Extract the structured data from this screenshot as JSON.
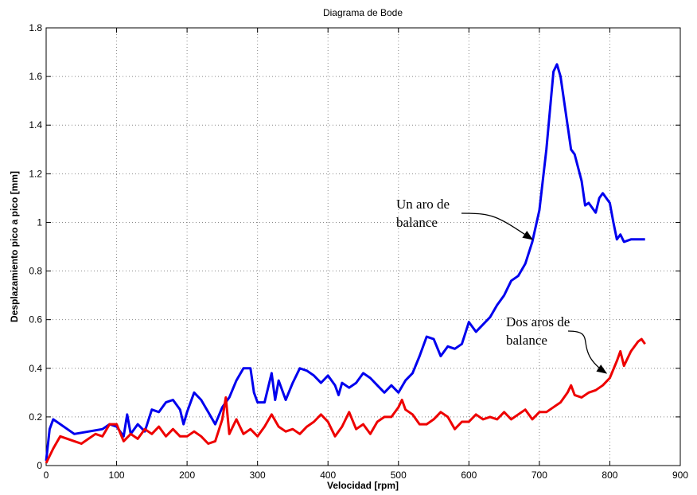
{
  "chart_data": {
    "type": "line",
    "title": "Diagrama de Bode",
    "xlabel": "Velocidad [rpm]",
    "ylabel": "Desplazamiento pico a pico [mm]",
    "xlim": [
      0,
      900
    ],
    "xticks": [
      0,
      100,
      200,
      300,
      400,
      500,
      600,
      700,
      800,
      900
    ],
    "ylim": [
      0,
      1.8
    ],
    "yticks": [
      0,
      0.2,
      0.4,
      0.6,
      0.8,
      1,
      1.2,
      1.4,
      1.6,
      1.8
    ],
    "grid": true,
    "annotations": [
      {
        "lines": [
          "Un aro de",
          "balance"
        ],
        "x": 690,
        "y": 0.93
      },
      {
        "lines": [
          "Dos aros de",
          "balance"
        ],
        "x": 795,
        "y": 0.38
      }
    ],
    "series": [
      {
        "color": "#0000ee",
        "x": [
          0,
          5,
          10,
          40,
          80,
          90,
          100,
          110,
          115,
          120,
          130,
          140,
          150,
          160,
          170,
          180,
          190,
          195,
          200,
          210,
          220,
          230,
          240,
          250,
          260,
          270,
          280,
          290,
          295,
          300,
          310,
          320,
          325,
          330,
          340,
          350,
          360,
          370,
          380,
          390,
          400,
          410,
          415,
          420,
          430,
          440,
          450,
          460,
          470,
          480,
          490,
          500,
          510,
          520,
          530,
          540,
          550,
          560,
          570,
          580,
          590,
          600,
          610,
          620,
          630,
          640,
          650,
          660,
          670,
          680,
          690,
          700,
          710,
          720,
          725,
          730,
          740,
          745,
          750,
          760,
          765,
          770,
          780,
          785,
          790,
          800,
          805,
          810,
          815,
          820,
          830,
          850
        ],
        "values": [
          0.02,
          0.15,
          0.19,
          0.13,
          0.15,
          0.17,
          0.16,
          0.12,
          0.21,
          0.13,
          0.17,
          0.14,
          0.23,
          0.22,
          0.26,
          0.27,
          0.23,
          0.17,
          0.22,
          0.3,
          0.27,
          0.22,
          0.17,
          0.24,
          0.28,
          0.35,
          0.4,
          0.4,
          0.3,
          0.26,
          0.26,
          0.38,
          0.27,
          0.35,
          0.27,
          0.34,
          0.4,
          0.39,
          0.37,
          0.34,
          0.37,
          0.33,
          0.29,
          0.34,
          0.32,
          0.34,
          0.38,
          0.36,
          0.33,
          0.3,
          0.33,
          0.3,
          0.35,
          0.38,
          0.45,
          0.53,
          0.52,
          0.45,
          0.49,
          0.48,
          0.5,
          0.59,
          0.55,
          0.58,
          0.61,
          0.66,
          0.7,
          0.76,
          0.78,
          0.83,
          0.92,
          1.05,
          1.3,
          1.62,
          1.65,
          1.6,
          1.4,
          1.3,
          1.28,
          1.17,
          1.07,
          1.08,
          1.04,
          1.1,
          1.12,
          1.08,
          1.0,
          0.93,
          0.95,
          0.92,
          0.93,
          0.93
        ]
      },
      {
        "color": "#ee0000",
        "x": [
          0,
          10,
          20,
          40,
          50,
          70,
          80,
          90,
          100,
          110,
          120,
          130,
          140,
          150,
          160,
          170,
          180,
          190,
          200,
          210,
          220,
          230,
          240,
          250,
          255,
          260,
          270,
          280,
          290,
          300,
          310,
          320,
          330,
          340,
          350,
          360,
          370,
          380,
          390,
          400,
          410,
          420,
          430,
          440,
          450,
          460,
          470,
          480,
          490,
          500,
          505,
          510,
          520,
          530,
          540,
          550,
          560,
          570,
          580,
          590,
          600,
          610,
          620,
          630,
          640,
          650,
          660,
          670,
          680,
          690,
          700,
          710,
          720,
          730,
          740,
          745,
          750,
          760,
          770,
          780,
          790,
          800,
          810,
          815,
          820,
          830,
          840,
          845,
          850
        ],
        "values": [
          0.01,
          0.07,
          0.12,
          0.1,
          0.09,
          0.13,
          0.12,
          0.17,
          0.17,
          0.1,
          0.13,
          0.11,
          0.15,
          0.13,
          0.16,
          0.12,
          0.15,
          0.12,
          0.12,
          0.14,
          0.12,
          0.09,
          0.1,
          0.19,
          0.28,
          0.13,
          0.19,
          0.13,
          0.15,
          0.12,
          0.16,
          0.21,
          0.16,
          0.14,
          0.15,
          0.13,
          0.16,
          0.18,
          0.21,
          0.18,
          0.12,
          0.16,
          0.22,
          0.15,
          0.17,
          0.13,
          0.18,
          0.2,
          0.2,
          0.24,
          0.27,
          0.23,
          0.21,
          0.17,
          0.17,
          0.19,
          0.22,
          0.2,
          0.15,
          0.18,
          0.18,
          0.21,
          0.19,
          0.2,
          0.19,
          0.22,
          0.19,
          0.21,
          0.23,
          0.19,
          0.22,
          0.22,
          0.24,
          0.26,
          0.3,
          0.33,
          0.29,
          0.28,
          0.3,
          0.31,
          0.33,
          0.36,
          0.43,
          0.47,
          0.41,
          0.47,
          0.51,
          0.52,
          0.5
        ]
      }
    ]
  }
}
